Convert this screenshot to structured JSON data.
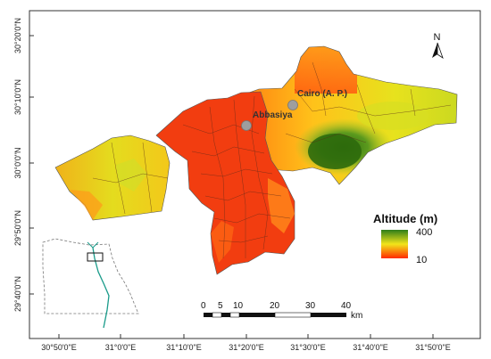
{
  "map": {
    "latitude_labels": [
      "30°20'0\"N",
      "30°10'0\"N",
      "30°0'0\"N",
      "29°50'0\"N",
      "29°40'0\"N"
    ],
    "longitude_labels": [
      "30°50'0\"E",
      "31°0'0\"E",
      "31°10'0\"E",
      "31°20'0\"E",
      "31°30'0\"E",
      "31°40'0\"E",
      "31°50'0\"E"
    ],
    "places": [
      {
        "name": "Cairo (A. P.)",
        "marker_color": "#9e9e9e"
      },
      {
        "name": "Abbasiya",
        "marker_color": "#9e9e9e"
      }
    ],
    "north_label": "N"
  },
  "legend": {
    "title": "Altitude (m)",
    "max_value": "400",
    "min_value": "10",
    "colors": [
      "#2e7d1a",
      "#f2e51a",
      "#ff2a00"
    ]
  },
  "scale_bar": {
    "ticks": [
      "0",
      "5",
      "10",
      "20",
      "30",
      "40"
    ],
    "unit": "km"
  },
  "colors": {
    "low": "#ff3300",
    "mid": "#ffcc00",
    "high": "#2f7a10",
    "boundary": "#333333"
  }
}
